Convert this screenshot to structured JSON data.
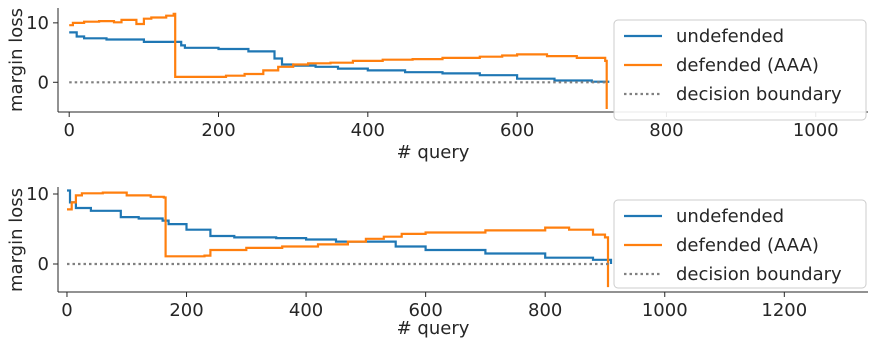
{
  "colors": {
    "undefended": "#1f77b4",
    "defended": "#ff7f0e",
    "boundary": "#808080",
    "axis": "#262626"
  },
  "chart_data": [
    {
      "type": "line",
      "xlabel": "# query",
      "ylabel": "margin loss",
      "xlim": [
        -15,
        1070
      ],
      "ylim": [
        -5,
        12.5
      ],
      "xticks": [
        0,
        200,
        400,
        600,
        800,
        1000
      ],
      "yticks": [
        0,
        10
      ],
      "grid": false,
      "legend": {
        "position": "right",
        "entries": [
          "undefended",
          "defended (AAA)",
          "decision boundary"
        ]
      },
      "series": [
        {
          "name": "undefended",
          "color": "#1f77b4",
          "style": "step",
          "x": [
            0,
            10,
            20,
            50,
            100,
            150,
            155,
            200,
            240,
            275,
            285,
            300,
            330,
            360,
            400,
            450,
            500,
            550,
            600,
            650,
            700,
            722
          ],
          "y": [
            8.4,
            7.7,
            7.4,
            7.2,
            6.8,
            6.2,
            5.8,
            5.6,
            5.2,
            4.0,
            3.0,
            2.8,
            2.6,
            2.3,
            2.0,
            1.7,
            1.5,
            1.2,
            0.6,
            0.3,
            0.1,
            -0.1
          ]
        },
        {
          "name": "defended (AAA)",
          "color": "#ff7f0e",
          "style": "step",
          "x": [
            0,
            5,
            20,
            40,
            60,
            70,
            90,
            100,
            110,
            130,
            140,
            142,
            160,
            210,
            235,
            260,
            280,
            300,
            320,
            350,
            380,
            420,
            460,
            500,
            550,
            580,
            600,
            640,
            680,
            718,
            720
          ],
          "y": [
            9.6,
            10.0,
            10.2,
            10.3,
            10.1,
            10.5,
            9.8,
            10.7,
            10.9,
            11.2,
            11.5,
            0.9,
            0.9,
            1.1,
            1.4,
            2.0,
            2.6,
            3.0,
            3.2,
            3.3,
            3.6,
            3.8,
            3.9,
            4.1,
            4.3,
            4.5,
            4.7,
            4.4,
            4.1,
            3.6,
            -4.5
          ]
        },
        {
          "name": "decision boundary",
          "color": "#808080",
          "style": "dotted",
          "x": [
            0,
            722
          ],
          "y": [
            0,
            0
          ]
        }
      ]
    },
    {
      "type": "line",
      "xlabel": "# query",
      "ylabel": "margin loss",
      "xlim": [
        -15,
        1340
      ],
      "ylim": [
        -4,
        11
      ],
      "xticks": [
        0,
        200,
        400,
        600,
        800,
        1000,
        1200
      ],
      "yticks": [
        0,
        10
      ],
      "grid": false,
      "legend": {
        "position": "right",
        "entries": [
          "undefended",
          "defended (AAA)",
          "decision boundary"
        ]
      },
      "series": [
        {
          "name": "undefended",
          "color": "#1f77b4",
          "style": "step",
          "x": [
            0,
            5,
            15,
            40,
            90,
            120,
            160,
            170,
            200,
            240,
            280,
            350,
            400,
            450,
            550,
            600,
            700,
            800,
            880,
            910
          ],
          "y": [
            10.5,
            8.8,
            8.0,
            7.6,
            6.7,
            6.5,
            6.2,
            5.7,
            4.9,
            4.0,
            3.8,
            3.7,
            3.5,
            3.2,
            2.5,
            2.0,
            1.5,
            0.9,
            0.6,
            0.0
          ]
        },
        {
          "name": "defended (AAA)",
          "color": "#ff7f0e",
          "style": "step",
          "x": [
            0,
            8,
            15,
            25,
            60,
            100,
            140,
            162,
            165,
            200,
            230,
            240,
            300,
            360,
            420,
            470,
            500,
            530,
            560,
            600,
            700,
            800,
            840,
            880,
            900,
            905
          ],
          "y": [
            7.8,
            8.8,
            9.8,
            10.1,
            10.2,
            9.8,
            9.6,
            9.5,
            1.1,
            1.1,
            1.2,
            2.0,
            2.3,
            2.5,
            2.8,
            3.2,
            3.6,
            3.9,
            4.3,
            4.5,
            4.8,
            5.2,
            4.9,
            4.2,
            3.8,
            -3.3
          ]
        },
        {
          "name": "decision boundary",
          "color": "#808080",
          "style": "dotted",
          "x": [
            0,
            910
          ],
          "y": [
            0,
            0
          ]
        }
      ]
    }
  ]
}
